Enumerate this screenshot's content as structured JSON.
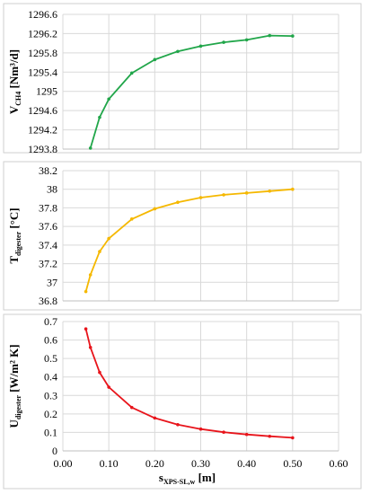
{
  "chart_data": [
    {
      "type": "line",
      "ylabel_main": "V",
      "ylabel_sub": "CH4",
      "ylabel_rest": " [Nm³/d]",
      "ylim": [
        1293.8,
        1296.6
      ],
      "yticks": [
        "1296.6",
        "1296.2",
        "1295.8",
        "1295.4",
        "1295",
        "1294.6",
        "1294.2",
        "1293.8"
      ],
      "ytick_values": [
        1296.6,
        1296.2,
        1295.8,
        1295.4,
        1295.0,
        1294.6,
        1294.2,
        1293.8
      ],
      "xlim": [
        0.0,
        0.6
      ],
      "grid": true,
      "series": [
        {
          "color": "#21a64a",
          "x": [
            0.06,
            0.08,
            0.1,
            0.15,
            0.2,
            0.25,
            0.3,
            0.35,
            0.4,
            0.45,
            0.5
          ],
          "values": [
            1293.82,
            1294.46,
            1294.84,
            1295.38,
            1295.66,
            1295.83,
            1295.94,
            1296.02,
            1296.07,
            1296.16,
            1296.15
          ]
        }
      ]
    },
    {
      "type": "line",
      "ylabel_main": "T",
      "ylabel_sub": "digester",
      "ylabel_rest": " [°C]",
      "ylim": [
        36.8,
        38.2
      ],
      "yticks": [
        "38.2",
        "38",
        "37.8",
        "37.6",
        "37.4",
        "37.2",
        "37",
        "36.8"
      ],
      "ytick_values": [
        38.2,
        38.0,
        37.8,
        37.6,
        37.4,
        37.2,
        37.0,
        36.8
      ],
      "xlim": [
        0.0,
        0.6
      ],
      "grid": true,
      "series": [
        {
          "color": "#f5b800",
          "x": [
            0.05,
            0.06,
            0.08,
            0.1,
            0.15,
            0.2,
            0.25,
            0.3,
            0.35,
            0.4,
            0.45,
            0.5
          ],
          "values": [
            36.9,
            37.08,
            37.33,
            37.47,
            37.68,
            37.79,
            37.86,
            37.91,
            37.94,
            37.96,
            37.98,
            38.0
          ]
        }
      ]
    },
    {
      "type": "line",
      "ylabel_main": "U",
      "ylabel_sub": "digester",
      "ylabel_rest": " [W/m² K]",
      "ylim": [
        0,
        0.7
      ],
      "yticks": [
        "0.7",
        "0.6",
        "0.5",
        "0.4",
        "0.3",
        "0.2",
        "0.1",
        "0"
      ],
      "ytick_values": [
        0.7,
        0.6,
        0.5,
        0.4,
        0.3,
        0.2,
        0.1,
        0.0
      ],
      "xlim": [
        0.0,
        0.6
      ],
      "xticks": [
        "0.00",
        "0.10",
        "0.20",
        "0.30",
        "0.40",
        "0.50",
        "0.60"
      ],
      "xtick_values": [
        0.0,
        0.1,
        0.2,
        0.3,
        0.4,
        0.5,
        0.6
      ],
      "xlabel_main": "s",
      "xlabel_sub": "XPS-SL,w",
      "xlabel_rest": " [m]",
      "grid": true,
      "series": [
        {
          "color": "#e8141b",
          "x": [
            0.05,
            0.06,
            0.08,
            0.1,
            0.15,
            0.2,
            0.25,
            0.3,
            0.35,
            0.4,
            0.45,
            0.5
          ],
          "values": [
            0.66,
            0.56,
            0.425,
            0.345,
            0.235,
            0.178,
            0.142,
            0.118,
            0.101,
            0.089,
            0.079,
            0.071
          ]
        }
      ]
    }
  ]
}
